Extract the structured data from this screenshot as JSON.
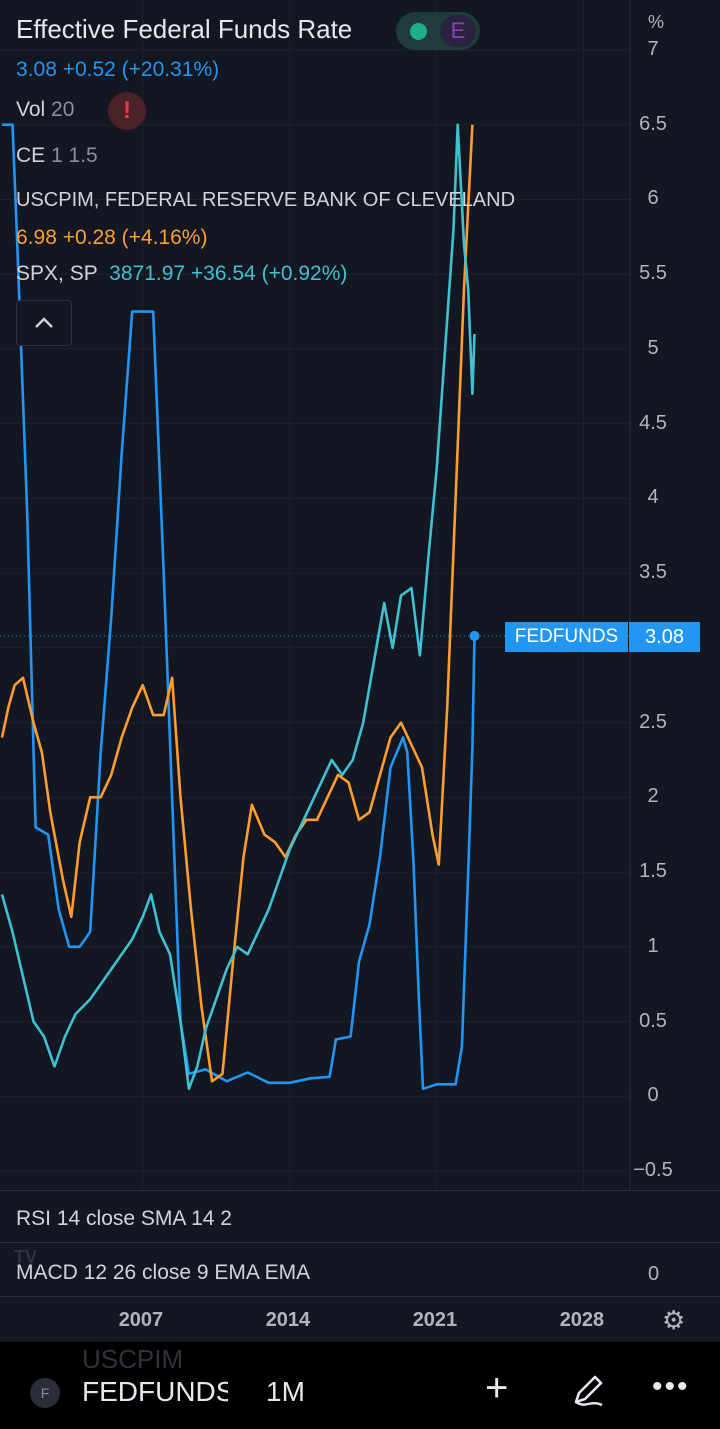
{
  "header": {
    "title": "Effective Federal Funds Rate",
    "fedfunds_line": "3.08  +0.52 (+20.31%)",
    "badge_e": "E",
    "vol_label": "Vol",
    "vol_value": "20",
    "warning": "!",
    "ce_label": "CE",
    "ce_value": "1 1.5",
    "uscpim_title": "USCPIM, FEDERAL RESERVE BANK OF CLEVELAND",
    "uscpim_line": "6.98  +0.28 (+4.16%)",
    "spx_label": "SPX, SP",
    "spx_line": "3871.97  +36.54 (+0.92%)",
    "collapse": "^"
  },
  "price_axis": {
    "unit": "%",
    "ticks": [
      "7",
      "6.5",
      "6",
      "5.5",
      "5",
      "4.5",
      "4",
      "3.5",
      "2.5",
      "2",
      "1.5",
      "1",
      "0.5",
      "0",
      "−0.5"
    ]
  },
  "price_tag": {
    "name": "FEDFUNDS",
    "value": "3.08"
  },
  "panes": {
    "rsi": "RSI 14 close SMA 14 2",
    "macd": "MACD 12 26 close 9 EMA EMA",
    "macd_axis": "0"
  },
  "time_axis": {
    "ticks": [
      "2007",
      "2014",
      "2021",
      "2028"
    ]
  },
  "bottom_bar": {
    "symbol_icon": "F",
    "symbol": "FEDFUNDS",
    "interval": "1M",
    "ghost": "USCPIM",
    "plus": "+",
    "more": "•••"
  },
  "colors": {
    "background": "#131722",
    "fedfunds": "#2196f3",
    "uscpim": "#ff9d2e",
    "spx": "#3fc1d1",
    "grid": "#1e222d"
  },
  "icons": [
    "warning-icon",
    "chevron-up-icon",
    "gear-icon",
    "plus-icon",
    "pencil-icon",
    "more-icon"
  ],
  "chart_data": {
    "type": "line",
    "title": "Effective Federal Funds Rate",
    "ylabel": "%",
    "ylim": [
      -0.5,
      7
    ],
    "xlim": [
      2000.3,
      2030.3
    ],
    "x_ticks": [
      2007,
      2014,
      2021,
      2028
    ],
    "grid": true,
    "series": [
      {
        "name": "FEDFUNDS",
        "color": "#2196f3",
        "points": [
          [
            2000.3,
            6.5
          ],
          [
            2000.8,
            6.5
          ],
          [
            2001.0,
            5.8
          ],
          [
            2001.5,
            3.9
          ],
          [
            2001.9,
            1.8
          ],
          [
            2002.5,
            1.75
          ],
          [
            2003.0,
            1.25
          ],
          [
            2003.5,
            1.0
          ],
          [
            2004.0,
            1.0
          ],
          [
            2004.5,
            1.1
          ],
          [
            2005.0,
            2.3
          ],
          [
            2005.5,
            3.2
          ],
          [
            2006.0,
            4.3
          ],
          [
            2006.5,
            5.25
          ],
          [
            2007.0,
            5.25
          ],
          [
            2007.5,
            5.25
          ],
          [
            2008.0,
            3.5
          ],
          [
            2008.4,
            2.0
          ],
          [
            2008.8,
            0.5
          ],
          [
            2009.2,
            0.15
          ],
          [
            2010.0,
            0.18
          ],
          [
            2011.0,
            0.1
          ],
          [
            2012.0,
            0.16
          ],
          [
            2013.0,
            0.09
          ],
          [
            2014.0,
            0.09
          ],
          [
            2015.0,
            0.12
          ],
          [
            2015.9,
            0.13
          ],
          [
            2016.2,
            0.38
          ],
          [
            2016.9,
            0.4
          ],
          [
            2017.3,
            0.9
          ],
          [
            2017.8,
            1.15
          ],
          [
            2018.3,
            1.6
          ],
          [
            2018.8,
            2.2
          ],
          [
            2019.4,
            2.4
          ],
          [
            2019.6,
            2.3
          ],
          [
            2019.9,
            1.55
          ],
          [
            2020.15,
            0.65
          ],
          [
            2020.35,
            0.05
          ],
          [
            2021.0,
            0.08
          ],
          [
            2021.9,
            0.08
          ],
          [
            2022.2,
            0.33
          ],
          [
            2022.5,
            1.5
          ],
          [
            2022.7,
            2.33
          ],
          [
            2022.8,
            3.08
          ]
        ]
      },
      {
        "name": "USCPIM",
        "color": "#ff9d2e",
        "points": [
          [
            2000.3,
            2.4
          ],
          [
            2000.6,
            2.6
          ],
          [
            2000.9,
            2.75
          ],
          [
            2001.3,
            2.8
          ],
          [
            2001.8,
            2.5
          ],
          [
            2002.2,
            2.3
          ],
          [
            2002.6,
            1.9
          ],
          [
            2003.2,
            1.45
          ],
          [
            2003.6,
            1.2
          ],
          [
            2004.0,
            1.7
          ],
          [
            2004.5,
            2.0
          ],
          [
            2005.0,
            2.0
          ],
          [
            2005.5,
            2.15
          ],
          [
            2006.0,
            2.4
          ],
          [
            2006.5,
            2.6
          ],
          [
            2007.0,
            2.75
          ],
          [
            2007.5,
            2.55
          ],
          [
            2008.0,
            2.55
          ],
          [
            2008.4,
            2.8
          ],
          [
            2008.8,
            2.0
          ],
          [
            2009.3,
            1.25
          ],
          [
            2009.8,
            0.6
          ],
          [
            2010.3,
            0.1
          ],
          [
            2010.8,
            0.15
          ],
          [
            2011.3,
            0.9
          ],
          [
            2011.8,
            1.6
          ],
          [
            2012.2,
            1.95
          ],
          [
            2012.8,
            1.75
          ],
          [
            2013.3,
            1.7
          ],
          [
            2013.8,
            1.6
          ],
          [
            2014.3,
            1.75
          ],
          [
            2014.8,
            1.85
          ],
          [
            2015.3,
            1.85
          ],
          [
            2015.8,
            2.0
          ],
          [
            2016.3,
            2.15
          ],
          [
            2016.8,
            2.1
          ],
          [
            2017.3,
            1.85
          ],
          [
            2017.8,
            1.9
          ],
          [
            2018.3,
            2.15
          ],
          [
            2018.8,
            2.4
          ],
          [
            2019.3,
            2.5
          ],
          [
            2019.8,
            2.35
          ],
          [
            2020.3,
            2.2
          ],
          [
            2020.8,
            1.75
          ],
          [
            2021.1,
            1.55
          ],
          [
            2021.5,
            2.6
          ],
          [
            2021.9,
            4.0
          ],
          [
            2022.3,
            5.4
          ],
          [
            2022.7,
            6.5
          ]
        ]
      },
      {
        "name": "SPX",
        "color": "#3fc1d1",
        "points": [
          [
            2000.3,
            1.35
          ],
          [
            2000.8,
            1.1
          ],
          [
            2001.3,
            0.8
          ],
          [
            2001.8,
            0.5
          ],
          [
            2002.3,
            0.4
          ],
          [
            2002.8,
            0.2
          ],
          [
            2003.3,
            0.4
          ],
          [
            2003.8,
            0.55
          ],
          [
            2004.5,
            0.65
          ],
          [
            2005.0,
            0.75
          ],
          [
            2005.5,
            0.85
          ],
          [
            2006.0,
            0.95
          ],
          [
            2006.5,
            1.05
          ],
          [
            2007.0,
            1.2
          ],
          [
            2007.4,
            1.35
          ],
          [
            2007.8,
            1.1
          ],
          [
            2008.3,
            0.95
          ],
          [
            2008.8,
            0.5
          ],
          [
            2009.2,
            0.05
          ],
          [
            2009.6,
            0.2
          ],
          [
            2010.0,
            0.45
          ],
          [
            2010.5,
            0.65
          ],
          [
            2011.0,
            0.85
          ],
          [
            2011.5,
            1.0
          ],
          [
            2012.0,
            0.95
          ],
          [
            2012.5,
            1.1
          ],
          [
            2013.0,
            1.25
          ],
          [
            2013.5,
            1.45
          ],
          [
            2014.0,
            1.65
          ],
          [
            2014.5,
            1.8
          ],
          [
            2015.0,
            1.95
          ],
          [
            2015.5,
            2.1
          ],
          [
            2016.0,
            2.25
          ],
          [
            2016.5,
            2.15
          ],
          [
            2017.0,
            2.25
          ],
          [
            2017.5,
            2.5
          ],
          [
            2018.0,
            2.9
          ],
          [
            2018.5,
            3.3
          ],
          [
            2018.9,
            3.0
          ],
          [
            2019.3,
            3.35
          ],
          [
            2019.8,
            3.4
          ],
          [
            2020.2,
            2.95
          ],
          [
            2020.6,
            3.6
          ],
          [
            2021.0,
            4.2
          ],
          [
            2021.4,
            5.0
          ],
          [
            2021.8,
            5.8
          ],
          [
            2022.0,
            6.5
          ],
          [
            2022.3,
            5.7
          ],
          [
            2022.5,
            5.4
          ],
          [
            2022.7,
            4.7
          ],
          [
            2022.8,
            5.1
          ]
        ]
      }
    ]
  }
}
